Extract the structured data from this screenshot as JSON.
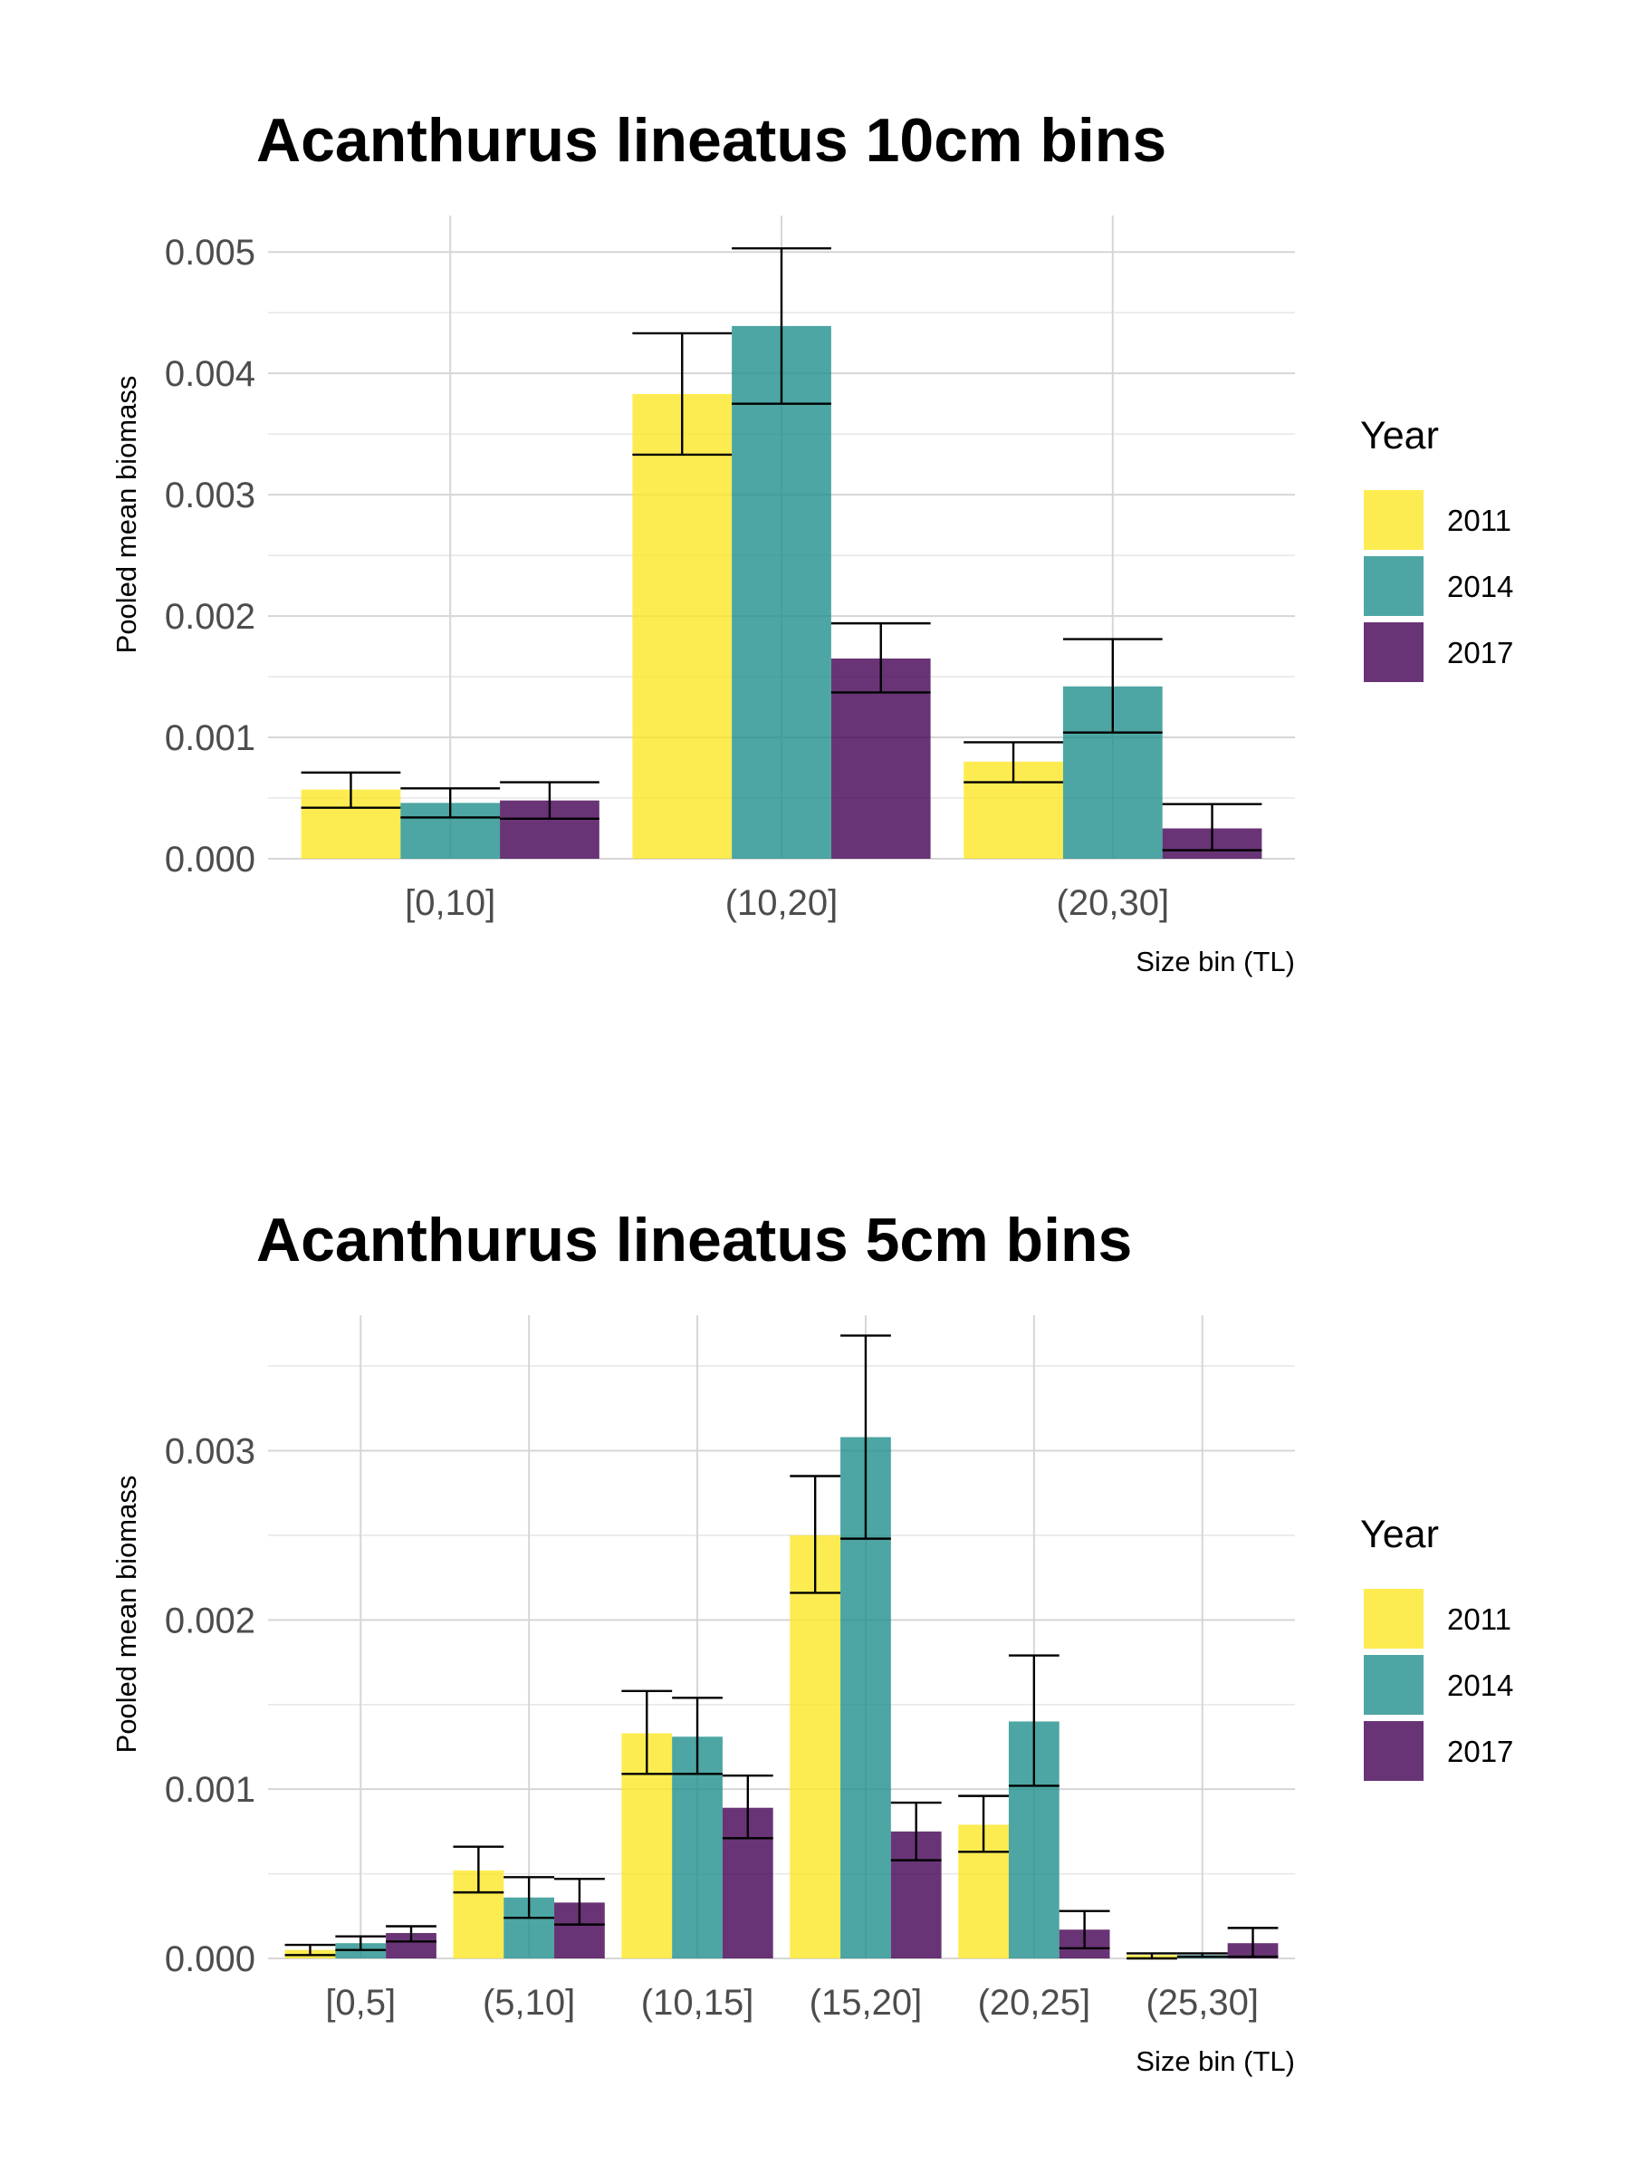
{
  "legend": {
    "title": "Year",
    "items": [
      {
        "label": "2011",
        "color": "#FDE725"
      },
      {
        "label": "2014",
        "color": "#21908C"
      },
      {
        "label": "2017",
        "color": "#440154"
      }
    ]
  },
  "chart_data": [
    {
      "type": "bar",
      "title": "Acanthurus lineatus 10cm bins",
      "xlabel": "Size bin (TL)",
      "ylabel": "Pooled mean biomass",
      "categories": [
        "[0,10]",
        "(10,20]",
        "(20,30]"
      ],
      "ylim": [
        0,
        0.0053
      ],
      "yticks": [
        "0.000",
        "0.001",
        "0.002",
        "0.003",
        "0.004",
        "0.005"
      ],
      "ytick_values": [
        0,
        0.001,
        0.002,
        0.003,
        0.004,
        0.005
      ],
      "grid": true,
      "legend_position": "right",
      "series": [
        {
          "name": "2011",
          "values": [
            0.00057,
            0.00383,
            0.0008
          ],
          "err_low": [
            0.00042,
            0.00333,
            0.00063
          ],
          "err_high": [
            0.00071,
            0.00433,
            0.00096
          ]
        },
        {
          "name": "2014",
          "values": [
            0.00046,
            0.00439,
            0.00142
          ],
          "err_low": [
            0.00034,
            0.00375,
            0.00104
          ],
          "err_high": [
            0.00058,
            0.00503,
            0.00181
          ]
        },
        {
          "name": "2017",
          "values": [
            0.00048,
            0.00165,
            0.00025
          ],
          "err_low": [
            0.00033,
            0.00137,
            7e-05
          ],
          "err_high": [
            0.00063,
            0.00194,
            0.00045
          ]
        }
      ]
    },
    {
      "type": "bar",
      "title": "Acanthurus lineatus 5cm bins",
      "xlabel": "Size bin (TL)",
      "ylabel": "Pooled mean biomass",
      "categories": [
        "[0,5]",
        "(5,10]",
        "(10,15]",
        "(15,20]",
        "(20,25]",
        "(25,30]"
      ],
      "ylim": [
        0,
        0.0038
      ],
      "yticks": [
        "0.000",
        "0.001",
        "0.002",
        "0.003"
      ],
      "ytick_values": [
        0,
        0.001,
        0.002,
        0.003
      ],
      "grid": true,
      "legend_position": "right",
      "series": [
        {
          "name": "2011",
          "values": [
            5e-05,
            0.00052,
            0.00133,
            0.0025,
            0.00079,
            2e-05
          ],
          "err_low": [
            2e-05,
            0.00039,
            0.00109,
            0.00216,
            0.00063,
            0.0
          ],
          "err_high": [
            8e-05,
            0.00066,
            0.00158,
            0.00285,
            0.00096,
            3e-05
          ]
        },
        {
          "name": "2014",
          "values": [
            9e-05,
            0.00036,
            0.00131,
            0.00308,
            0.0014,
            2e-05
          ],
          "err_low": [
            5e-05,
            0.00024,
            0.00109,
            0.00248,
            0.00102,
            1e-05
          ],
          "err_high": [
            0.00013,
            0.00048,
            0.00154,
            0.00368,
            0.00179,
            3e-05
          ]
        },
        {
          "name": "2017",
          "values": [
            0.00015,
            0.00033,
            0.00089,
            0.00075,
            0.00017,
            9e-05
          ],
          "err_low": [
            0.0001,
            0.0002,
            0.00071,
            0.00058,
            6e-05,
            1e-05
          ],
          "err_high": [
            0.00019,
            0.00047,
            0.00108,
            0.00092,
            0.00028,
            0.00018
          ]
        }
      ]
    }
  ]
}
